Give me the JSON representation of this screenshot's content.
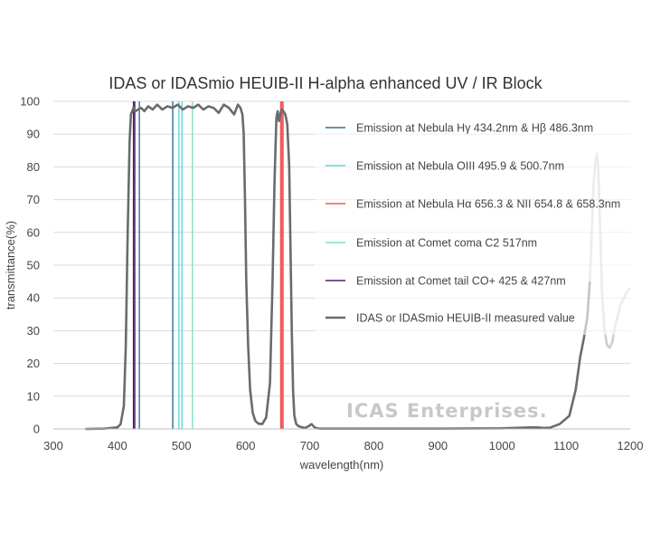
{
  "chart_data": {
    "type": "line",
    "title": "IDAS or IDASmio    HEUIB-II    H-alpha enhanced UV / IR Block",
    "xlabel": "wavelength(nm)",
    "ylabel": "transmittance(%)",
    "xlim": [
      300,
      1200
    ],
    "ylim": [
      0,
      100
    ],
    "xticks": [
      300,
      400,
      500,
      600,
      700,
      800,
      900,
      1000,
      1100,
      1200
    ],
    "yticks": [
      0,
      10,
      20,
      30,
      40,
      50,
      60,
      70,
      80,
      90,
      100
    ],
    "grid": "horizontal",
    "legend_position": "upper-right inside plot",
    "watermark": "ICAS Enterprises.",
    "emission_lines": [
      {
        "name": "Emission at Nebula  Hγ 434.2nm  &  Hβ 486.3nm",
        "color": "#2e6f96",
        "x": [
          434.2,
          486.3
        ]
      },
      {
        "name": "Emission at Nebula OIII 495.9 & 500.7nm",
        "color": "#5fd6da",
        "x": [
          495.9,
          500.7
        ]
      },
      {
        "name": "Emission at Nebula  Hα 656.3 & NII 654.8 & 658.3nm",
        "color": "#ef5a5a",
        "x": [
          654.8,
          656.3,
          658.3
        ]
      },
      {
        "name": "Emission at Comet coma C2 517nm",
        "color": "#80e0b8",
        "x": [
          517
        ]
      },
      {
        "name": "Emission at Comet tail    CO+ 425 & 427nm",
        "color": "#4b1d6e",
        "x": [
          425,
          427
        ]
      }
    ],
    "series": [
      {
        "name": "IDAS or IDASmio  HEUIB-II     measured value",
        "color": "#6b6b6b",
        "x": [
          350,
          380,
          400,
          405,
          410,
          413,
          416,
          419,
          421,
          423,
          425,
          428,
          432,
          437,
          442,
          448,
          455,
          462,
          470,
          478,
          486,
          494,
          502,
          510,
          518,
          526,
          534,
          542,
          550,
          558,
          566,
          574,
          582,
          588,
          592,
          595,
          597,
          599,
          601,
          604,
          607,
          611,
          615,
          620,
          626,
          632,
          638,
          642,
          645,
          648,
          650,
          652,
          654,
          656,
          659,
          662,
          665,
          668,
          670,
          672,
          674,
          676,
          679,
          683,
          687,
          692,
          698,
          703,
          706,
          709,
          715,
          800,
          900,
          1000,
          1050,
          1060,
          1065,
          1075,
          1090,
          1105,
          1115,
          1122,
          1128,
          1133,
          1137,
          1140,
          1143,
          1146,
          1148,
          1150,
          1153,
          1156,
          1160,
          1164,
          1168,
          1172,
          1176,
          1180,
          1185,
          1190,
          1195,
          1200
        ],
        "y": [
          0,
          0.1,
          0.5,
          1.5,
          7,
          25,
          60,
          88,
          96,
          97,
          98,
          97,
          97.5,
          98,
          97,
          98.5,
          97.5,
          99,
          97.5,
          98.5,
          98,
          99,
          97.5,
          98.5,
          98,
          99,
          97.5,
          98.5,
          98,
          96.5,
          99,
          98,
          96,
          99,
          98,
          96,
          90,
          70,
          45,
          25,
          12,
          5,
          2.5,
          1.6,
          1.5,
          3.5,
          14,
          45,
          75,
          95,
          97,
          94,
          96,
          97.5,
          97,
          96,
          93,
          80,
          55,
          30,
          12,
          4,
          1.5,
          0.8,
          0.6,
          0.3,
          0.8,
          1.5,
          0.8,
          0.3,
          0.1,
          0.1,
          0.1,
          0.2,
          0.5,
          0.4,
          0.3,
          0.4,
          1.5,
          4,
          12,
          22,
          28,
          34,
          45,
          60,
          75,
          82,
          84,
          80,
          62,
          42,
          30,
          25.5,
          24.8,
          26.5,
          31,
          34,
          38,
          40,
          42,
          43
        ]
      }
    ]
  }
}
